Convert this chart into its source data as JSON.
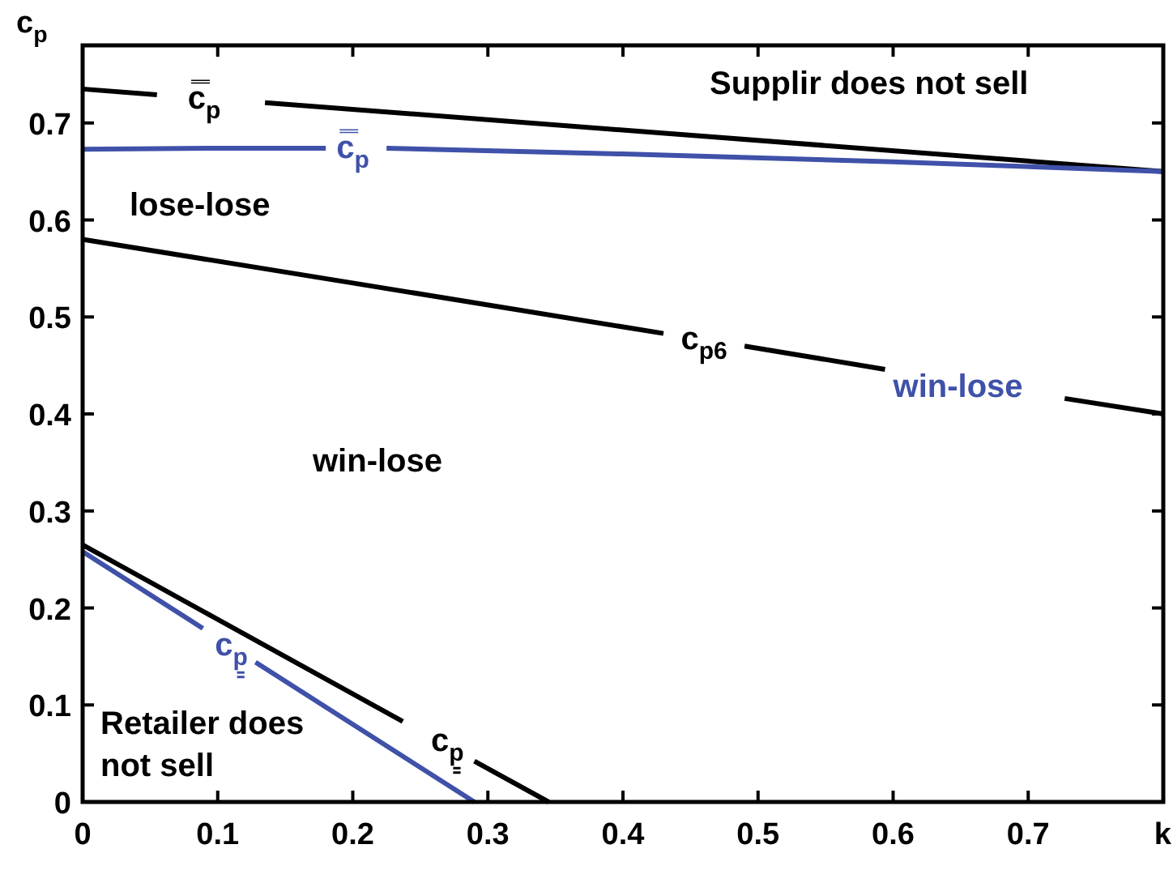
{
  "chart_data": {
    "type": "line",
    "xlabel": "k",
    "ylabel": "c$_{p}$",
    "xlim": [
      0,
      0.8
    ],
    "ylim": [
      0,
      0.78
    ],
    "xticks": [
      0,
      0.1,
      0.2,
      0.3,
      0.4,
      0.5,
      0.6,
      0.7
    ],
    "yticks": [
      0,
      0.1,
      0.2,
      0.3,
      0.4,
      0.5,
      0.6,
      0.7
    ],
    "grid": false,
    "marker": "none",
    "line_style": "solid",
    "series": [
      {
        "name": "c̿$_{p}$",
        "color": "#000000",
        "x": [
          0,
          0.055,
          0.09,
          0.135,
          0.8
        ],
        "values": [
          0.735,
          0.729,
          null,
          0.721,
          0.65
        ]
      },
      {
        "name": "c̿$_{p}$",
        "color": "#3f51a8",
        "x": [
          0,
          0.1,
          0.18,
          0.2,
          0.225,
          0.4,
          0.6,
          0.8
        ],
        "values": [
          0.673,
          0.674,
          0.674,
          null,
          0.674,
          0.668,
          0.66,
          0.65
        ]
      },
      {
        "name": "c$_{p6}$",
        "color": "#000000",
        "x": [
          0,
          0.2,
          0.43,
          0.46,
          0.49,
          0.594,
          0.66,
          0.727,
          0.8
        ],
        "values": [
          0.58,
          0.535,
          0.483,
          null,
          0.47,
          0.446,
          null,
          0.416,
          0.4
        ]
      },
      {
        "name": "c$_{p̳}$",
        "color": "#000000",
        "x": [
          0,
          0.237,
          0.27,
          0.29,
          0.345
        ],
        "values": [
          0.265,
          0.083,
          null,
          0.042,
          0
        ]
      },
      {
        "name": "c$_{p̳}$",
        "color": "#3f51a8",
        "x": [
          0,
          0.089,
          0.11,
          0.128,
          0.29
        ],
        "values": [
          0.258,
          0.179,
          null,
          0.144,
          0
        ]
      }
    ],
    "annotations": [
      "Supplir does not sell",
      "lose-lose",
      "win-lose",
      "Retailer does not sell",
      "win-lose"
    ]
  }
}
